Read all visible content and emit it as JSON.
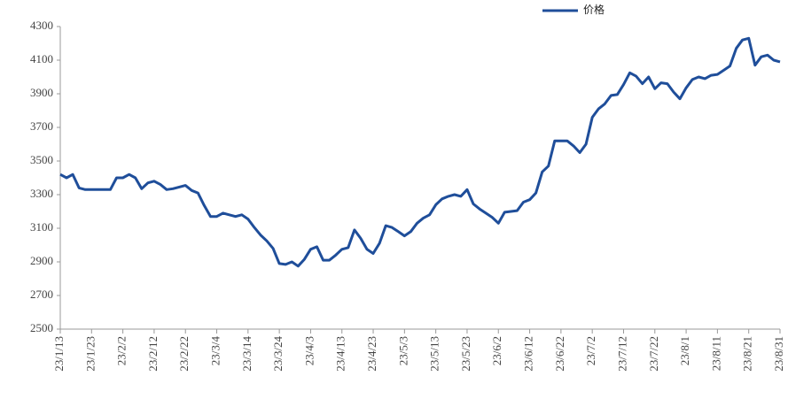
{
  "chart_data": {
    "type": "line",
    "categories": [
      "23/1/13",
      null,
      null,
      null,
      null,
      "23/1/23",
      null,
      null,
      null,
      null,
      "23/2/2",
      null,
      null,
      null,
      null,
      "23/2/12",
      null,
      null,
      null,
      null,
      "23/2/22",
      null,
      null,
      null,
      null,
      "23/3/4",
      null,
      null,
      null,
      null,
      "23/3/14",
      null,
      null,
      null,
      null,
      "23/3/24",
      null,
      null,
      null,
      null,
      "23/4/3",
      null,
      null,
      null,
      null,
      "23/4/13",
      null,
      null,
      null,
      null,
      "23/4/23",
      null,
      null,
      null,
      null,
      "23/5/3",
      null,
      null,
      null,
      null,
      "23/5/13",
      null,
      null,
      null,
      null,
      "23/5/23",
      null,
      null,
      null,
      null,
      "23/6/2",
      null,
      null,
      null,
      null,
      "23/6/12",
      null,
      null,
      null,
      null,
      "23/6/22",
      null,
      null,
      null,
      null,
      "23/7/2",
      null,
      null,
      null,
      null,
      "23/7/12",
      null,
      null,
      null,
      null,
      "23/7/22",
      null,
      null,
      null,
      null,
      "23/8/1",
      null,
      null,
      null,
      null,
      "23/8/11",
      null,
      null,
      null,
      null,
      "23/8/21",
      null,
      null,
      null,
      null,
      "23/8/31"
    ],
    "series": [
      {
        "name": "价格",
        "color": "#1f4e9a",
        "values": [
          3420,
          3400,
          3420,
          3340,
          3330,
          3330,
          3330,
          3330,
          3330,
          3400,
          3400,
          3420,
          3400,
          3335,
          3370,
          3380,
          3360,
          3330,
          3335,
          3345,
          3355,
          3325,
          3310,
          3235,
          3170,
          3170,
          3190,
          3180,
          3170,
          3180,
          3155,
          3105,
          3060,
          3025,
          2980,
          2890,
          2885,
          2900,
          2875,
          2915,
          2975,
          2990,
          2910,
          2910,
          2940,
          2975,
          2985,
          3090,
          3040,
          2975,
          2950,
          3010,
          3115,
          3105,
          3080,
          3055,
          3080,
          3130,
          3160,
          3180,
          3240,
          3275,
          3290,
          3300,
          3290,
          3330,
          3245,
          3215,
          3190,
          3165,
          3130,
          3195,
          3200,
          3205,
          3255,
          3270,
          3310,
          3435,
          3470,
          3620,
          3620,
          3620,
          3590,
          3550,
          3600,
          3760,
          3810,
          3840,
          3890,
          3895,
          3955,
          4025,
          4005,
          3960,
          4000,
          3930,
          3965,
          3960,
          3910,
          3870,
          3935,
          3985,
          4000,
          3990,
          4010,
          4015,
          4040,
          4065,
          4170,
          4220,
          4230,
          4070,
          4120,
          4130,
          4100,
          4090
        ]
      }
    ],
    "ylim": [
      2500,
      4300
    ],
    "yticks": [
      2500,
      2700,
      2900,
      3100,
      3300,
      3500,
      3700,
      3900,
      4100,
      4300
    ],
    "grid": false,
    "legend": "top-right"
  }
}
